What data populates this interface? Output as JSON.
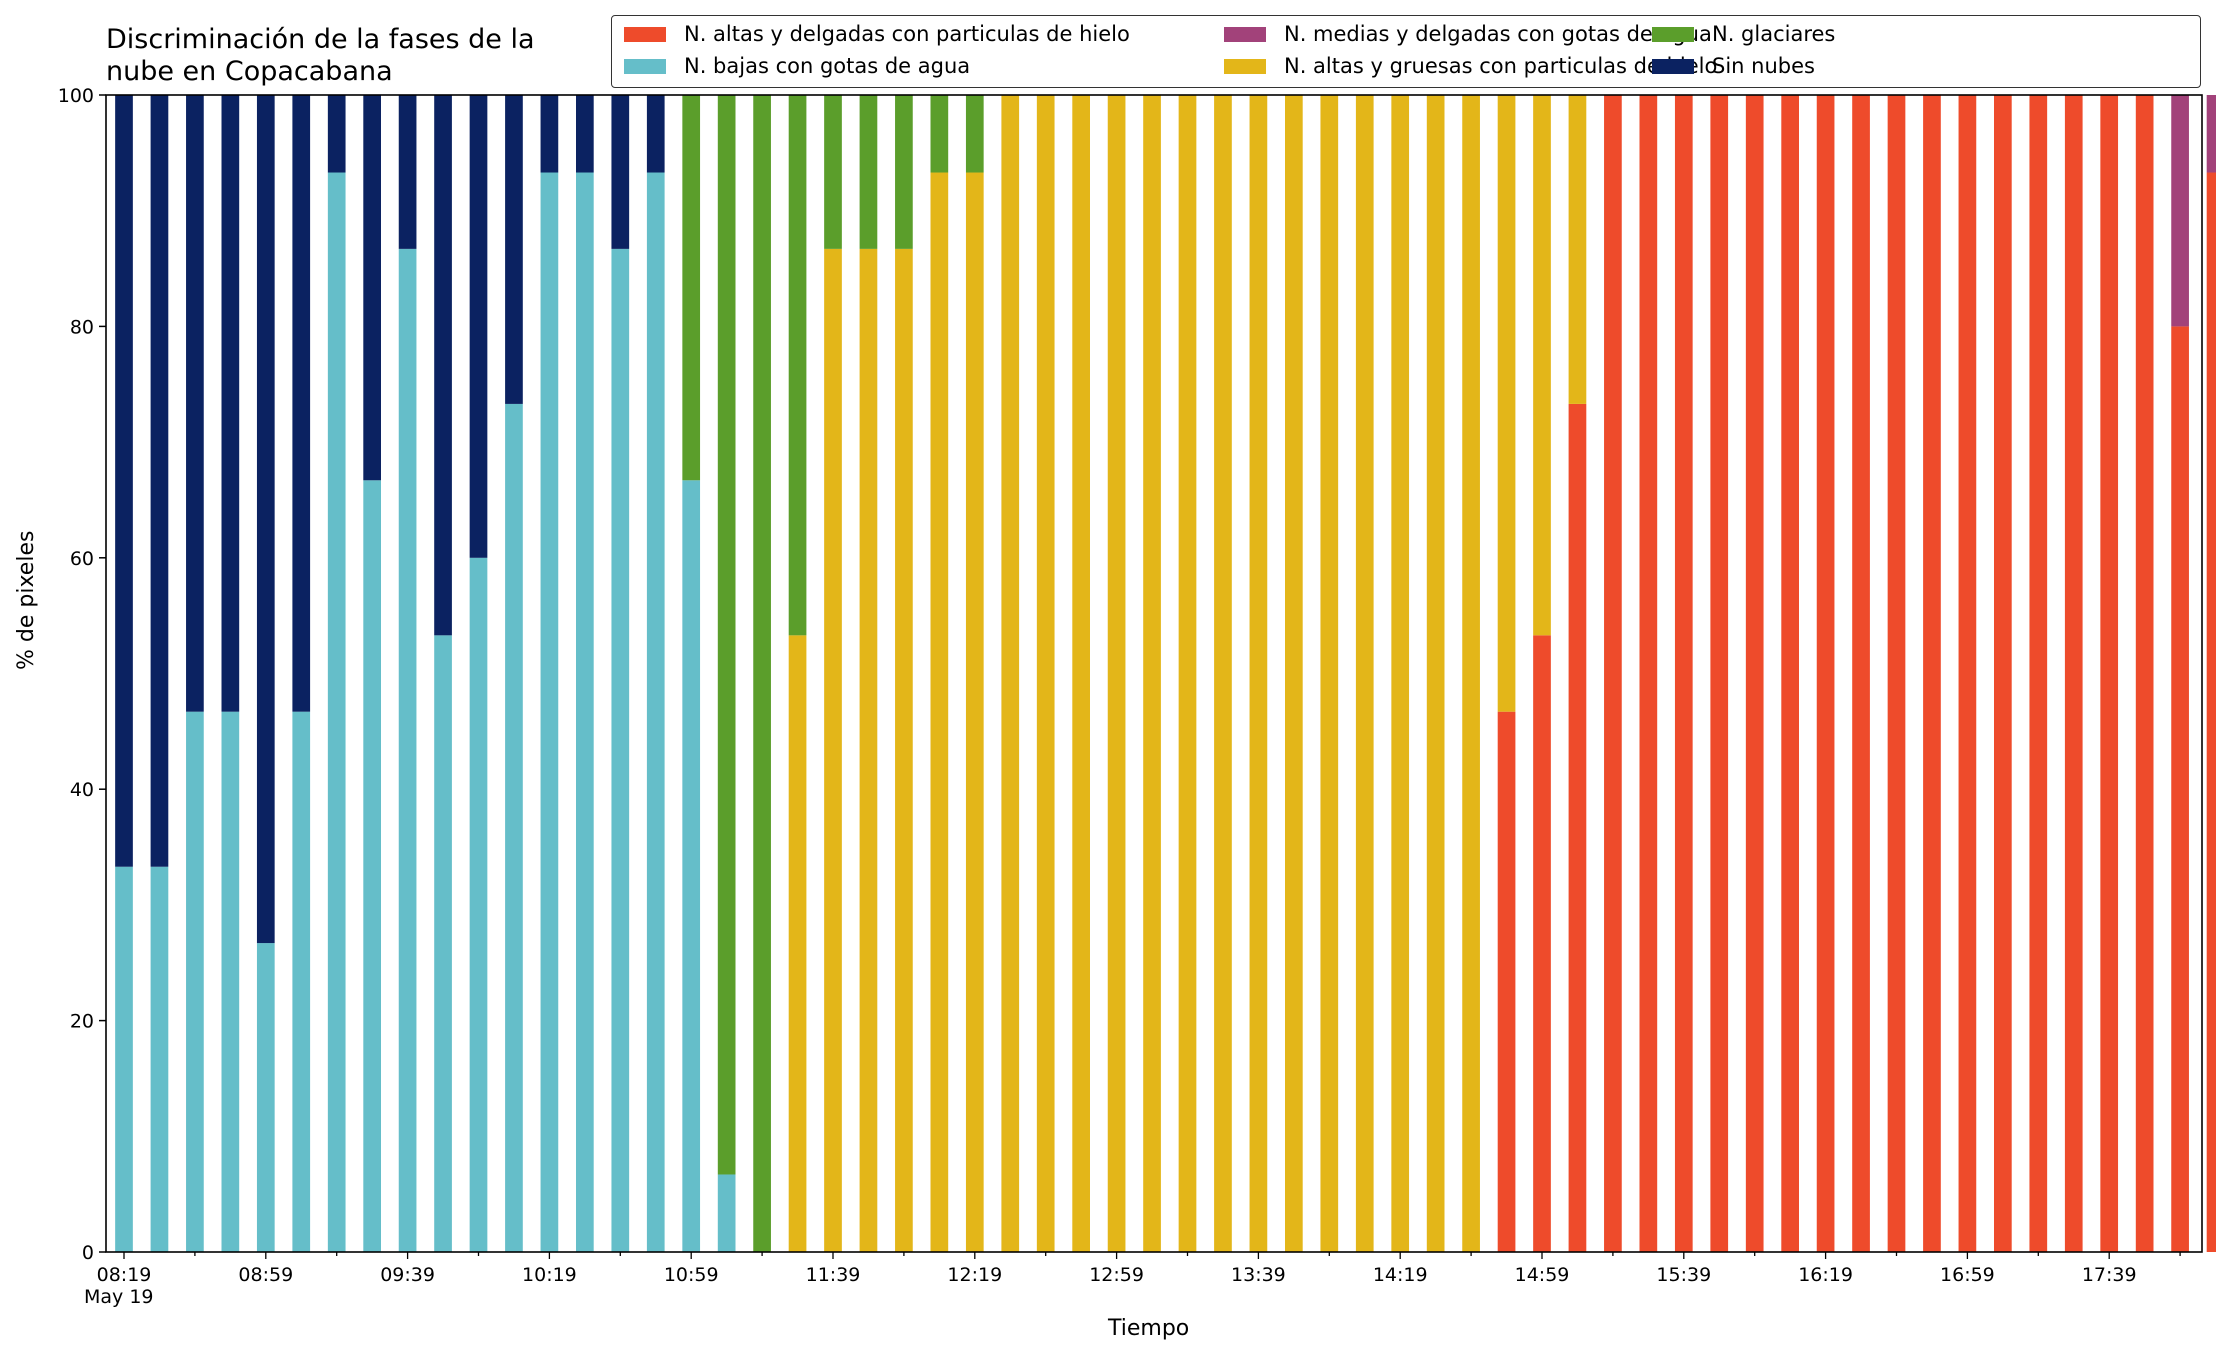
{
  "chart_data": {
    "type": "bar",
    "stacked": true,
    "title": "Discriminación de la fases de la\nnube en Copacabana",
    "xlabel": "Tiempo",
    "ylabel": "% de pixeles",
    "ylim": [
      0,
      100
    ],
    "yticks": [
      0,
      20,
      40,
      60,
      80,
      100
    ],
    "x_start": "08:19",
    "x_interval_minutes": 10,
    "x_tick_labels": [
      "08:19",
      "08:59",
      "09:39",
      "10:19",
      "10:59",
      "11:39",
      "12:19",
      "12:59",
      "13:39",
      "14:19",
      "14:59",
      "15:39",
      "16:19",
      "16:59",
      "17:39"
    ],
    "x_date_label": "May 19",
    "legend_position": "upper-right",
    "series": [
      {
        "name": "N. altas y delgadas con particulas de hielo",
        "color": "#ee4b2b",
        "values": [
          0,
          0,
          0,
          0,
          0,
          0,
          0,
          0,
          0,
          0,
          0,
          0,
          0,
          0,
          0,
          0,
          0,
          0,
          0,
          0,
          0,
          0,
          0,
          0,
          0,
          0,
          0,
          0,
          0,
          0,
          0,
          0,
          0,
          0,
          0,
          0,
          0,
          0,
          0,
          46.7,
          53.3,
          73.3,
          100,
          100,
          100,
          100,
          100,
          100,
          100,
          100,
          100,
          100,
          100,
          100,
          100,
          100,
          100,
          100,
          80,
          93.3
        ]
      },
      {
        "name": "N. altas y gruesas con particulas de hielo",
        "color": "#e3b619",
        "values": [
          0,
          0,
          0,
          0,
          0,
          0,
          0,
          0,
          0,
          0,
          0,
          0,
          0,
          0,
          0,
          0,
          0,
          0,
          0,
          53.3,
          86.7,
          86.7,
          86.7,
          93.3,
          93.3,
          100,
          100,
          100,
          100,
          100,
          100,
          100,
          100,
          100,
          100,
          100,
          100,
          100,
          100,
          53.3,
          46.7,
          26.7,
          0,
          0,
          0,
          0,
          0,
          0,
          0,
          0,
          0,
          0,
          0,
          0,
          0,
          0,
          0,
          0,
          0,
          0
        ]
      },
      {
        "name": "N. medias y delgadas con gotas de agua",
        "color": "#a2427a",
        "values": [
          0,
          0,
          0,
          0,
          0,
          0,
          0,
          0,
          0,
          0,
          0,
          0,
          0,
          0,
          0,
          0,
          0,
          0,
          0,
          0,
          0,
          0,
          0,
          0,
          0,
          0,
          0,
          0,
          0,
          0,
          0,
          0,
          0,
          0,
          0,
          0,
          0,
          0,
          0,
          0,
          0,
          0,
          0,
          0,
          0,
          0,
          0,
          0,
          0,
          0,
          0,
          0,
          0,
          0,
          0,
          0,
          0,
          0,
          20,
          6.7
        ]
      },
      {
        "name": "N. bajas con gotas de agua",
        "color": "#65bec9",
        "values": [
          33.3,
          33.3,
          46.7,
          46.7,
          26.7,
          46.7,
          93.3,
          66.7,
          86.7,
          53.3,
          60,
          73.3,
          93.3,
          93.3,
          86.7,
          93.3,
          66.7,
          6.7,
          0,
          0,
          0,
          0,
          0,
          0,
          0,
          0,
          0,
          0,
          0,
          0,
          0,
          0,
          0,
          0,
          0,
          0,
          0,
          0,
          0,
          0,
          0,
          0,
          0,
          0,
          0,
          0,
          0,
          0,
          0,
          0,
          0,
          0,
          0,
          0,
          0,
          0,
          0,
          0,
          0,
          0
        ]
      },
      {
        "name": "N. glaciares",
        "color": "#5b9e2b",
        "values": [
          0,
          0,
          0,
          0,
          0,
          0,
          0,
          0,
          0,
          0,
          0,
          0,
          0,
          0,
          0,
          0,
          33.3,
          93.3,
          100,
          46.7,
          13.3,
          13.3,
          13.3,
          6.7,
          6.7,
          0,
          0,
          0,
          0,
          0,
          0,
          0,
          0,
          0,
          0,
          0,
          0,
          0,
          0,
          0,
          0,
          0,
          0,
          0,
          0,
          0,
          0,
          0,
          0,
          0,
          0,
          0,
          0,
          0,
          0,
          0,
          0,
          0,
          0,
          0
        ]
      },
      {
        "name": "Sin nubes",
        "color": "#0b2261",
        "values": [
          66.7,
          66.7,
          53.3,
          53.3,
          73.3,
          53.3,
          6.7,
          33.3,
          13.3,
          46.7,
          40,
          26.7,
          6.7,
          6.7,
          13.3,
          6.7,
          0,
          0,
          0,
          0,
          0,
          0,
          0,
          0,
          0,
          0,
          0,
          0,
          0,
          0,
          0,
          0,
          0,
          0,
          0,
          0,
          0,
          0,
          0,
          0,
          0,
          0,
          0,
          0,
          0,
          0,
          0,
          0,
          0,
          0,
          0,
          0,
          0,
          0,
          0,
          0,
          0,
          0,
          0,
          0
        ]
      }
    ],
    "legend_order": [
      0,
      3,
      2,
      1,
      4,
      5
    ]
  }
}
